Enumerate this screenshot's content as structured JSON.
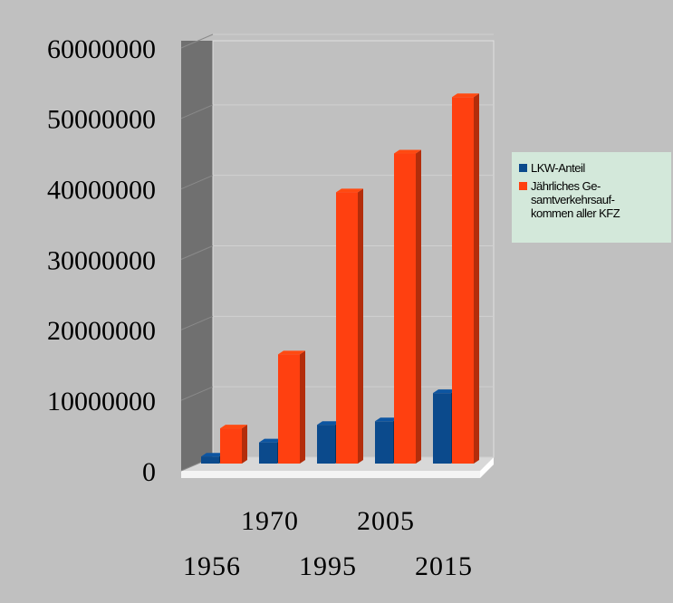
{
  "chart_data": {
    "type": "bar3d",
    "categories": [
      "1956",
      "1970",
      "1995",
      "2005",
      "2015"
    ],
    "series": [
      {
        "name": "LKW-Anteil",
        "color": "#0b4a8c",
        "values": [
          1000000,
          3000000,
          5500000,
          6000000,
          10000000
        ]
      },
      {
        "name": "Jährliches Ge-samtverkehrsauf-kommen aller KFZ",
        "color": "#ff4010",
        "values": [
          5000000,
          15500000,
          38500000,
          44000000,
          52000000
        ]
      }
    ],
    "ylim": [
      0,
      60000000
    ],
    "yticks": [
      0,
      10000000,
      20000000,
      30000000,
      40000000,
      50000000,
      60000000
    ],
    "grid": true,
    "legend": "right"
  }
}
